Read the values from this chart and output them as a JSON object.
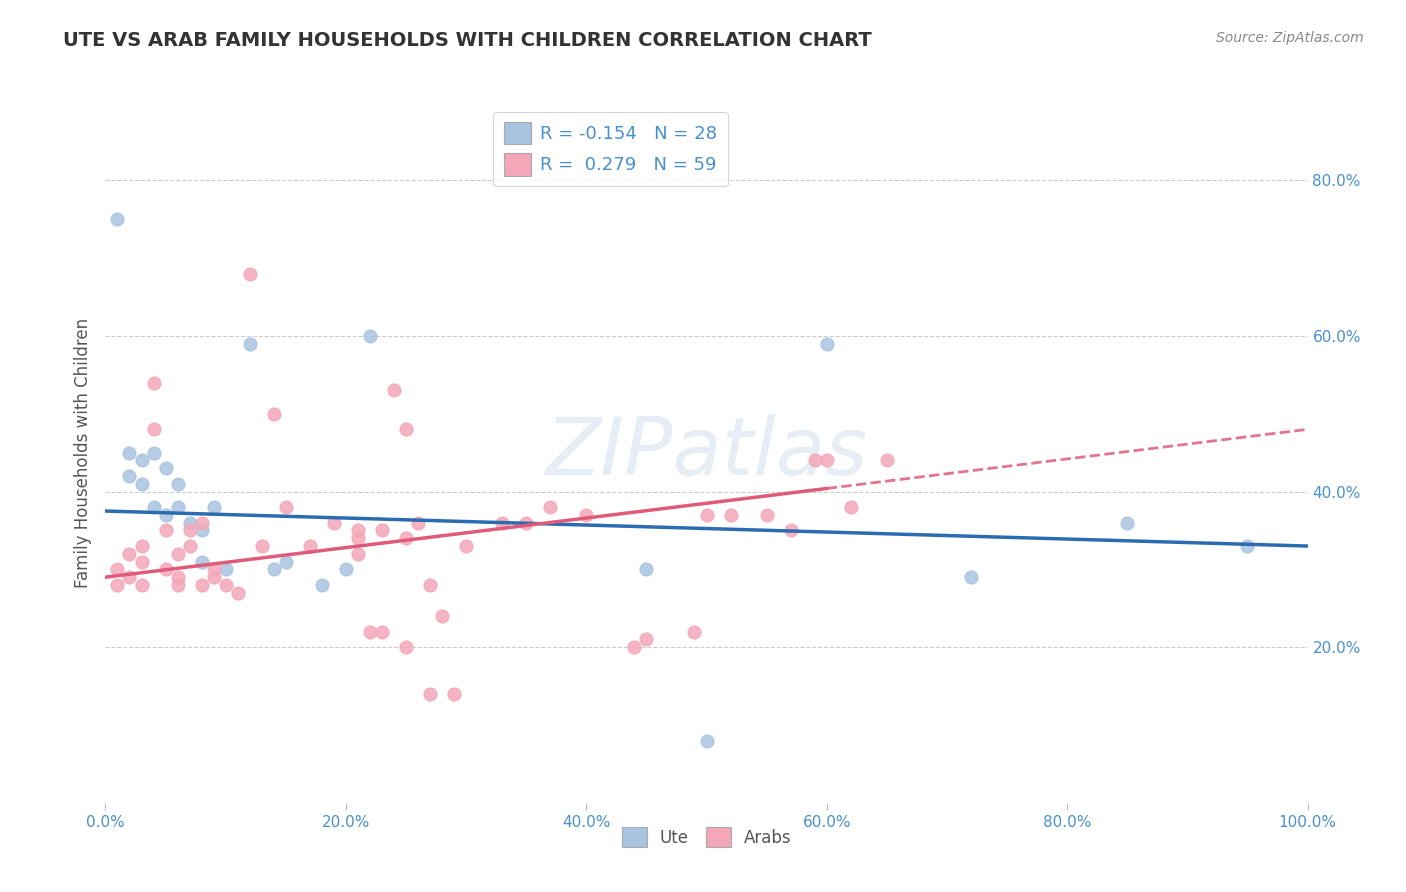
{
  "title": "UTE VS ARAB FAMILY HOUSEHOLDS WITH CHILDREN CORRELATION CHART",
  "source": "Source: ZipAtlas.com",
  "ylabel": "Family Households with Children",
  "watermark": "ZIPatlas",
  "xlim": [
    0,
    100
  ],
  "ylim": [
    0,
    90
  ],
  "y_ticks_right": [
    20.0,
    40.0,
    60.0,
    80.0
  ],
  "x_ticks": [
    0.0,
    20.0,
    40.0,
    60.0,
    80.0,
    100.0
  ],
  "ute_R": -0.154,
  "ute_N": 28,
  "arab_R": 0.279,
  "arab_N": 59,
  "ute_color": "#a8c4e0",
  "arab_color": "#f4a7b9",
  "ute_line_color": "#2b6cb0",
  "arab_line_color": "#e05a7a",
  "grid_color": "#cccccc",
  "title_color": "#333333",
  "axis_label_color": "#555555",
  "tick_color": "#4a90cc",
  "source_color": "#888888",
  "ute_line_x0": 0,
  "ute_line_y0": 37.5,
  "ute_line_x1": 100,
  "ute_line_y1": 33.0,
  "arab_line_x0": 0,
  "arab_line_y0": 29.0,
  "arab_line_x1": 100,
  "arab_line_y1": 48.0,
  "arab_dash_start": 60,
  "ute_x": [
    1,
    2,
    2,
    3,
    3,
    4,
    4,
    5,
    5,
    6,
    6,
    7,
    8,
    8,
    9,
    10,
    12,
    14,
    15,
    18,
    20,
    22,
    45,
    50,
    60,
    72,
    85,
    95
  ],
  "ute_y": [
    75,
    45,
    42,
    44,
    41,
    45,
    38,
    43,
    37,
    41,
    38,
    36,
    35,
    31,
    38,
    30,
    59,
    30,
    31,
    28,
    30,
    60,
    30,
    8,
    59,
    29,
    36,
    33
  ],
  "arab_x": [
    1,
    1,
    2,
    2,
    3,
    3,
    3,
    4,
    4,
    5,
    5,
    6,
    6,
    6,
    7,
    7,
    8,
    8,
    9,
    9,
    10,
    11,
    12,
    13,
    14,
    15,
    17,
    19,
    21,
    23,
    25,
    26,
    27,
    24,
    25,
    30,
    35,
    37,
    40,
    44,
    45,
    49,
    50,
    52,
    55,
    57,
    60,
    62,
    65,
    21,
    21,
    22,
    23,
    25,
    27,
    28,
    29,
    33,
    59
  ],
  "arab_y": [
    30,
    28,
    32,
    29,
    33,
    31,
    28,
    54,
    48,
    35,
    30,
    29,
    28,
    32,
    35,
    33,
    36,
    28,
    29,
    30,
    28,
    27,
    68,
    33,
    50,
    38,
    33,
    36,
    35,
    35,
    34,
    36,
    28,
    53,
    48,
    33,
    36,
    38,
    37,
    20,
    21,
    22,
    37,
    37,
    37,
    35,
    44,
    38,
    44,
    34,
    32,
    22,
    22,
    20,
    14,
    24,
    14,
    36,
    44
  ]
}
